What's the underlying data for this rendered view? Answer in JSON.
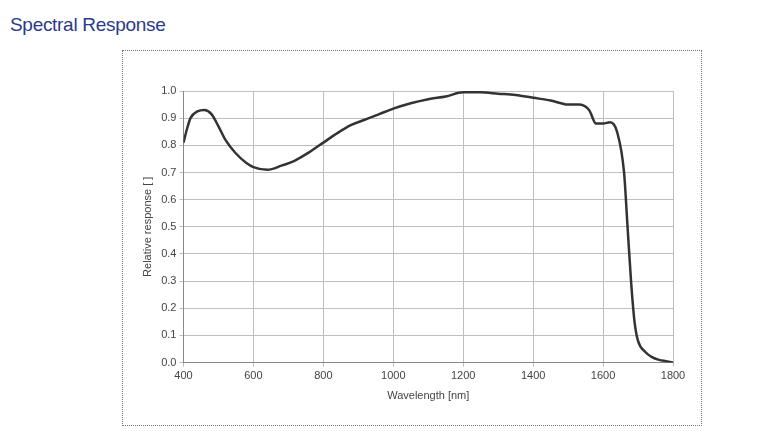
{
  "chart_data": {
    "type": "line",
    "title": "Spectral Response",
    "x_label": "Wavelength [nm]",
    "y_label": "Relative response [ ]",
    "x": [
      400,
      410,
      420,
      440,
      460,
      480,
      500,
      520,
      550,
      580,
      600,
      640,
      680,
      720,
      760,
      800,
      840,
      880,
      920,
      960,
      1000,
      1050,
      1100,
      1150,
      1200,
      1250,
      1300,
      1350,
      1400,
      1450,
      1480,
      1500,
      1530,
      1560,
      1580,
      1600,
      1620,
      1640,
      1660,
      1670,
      1680,
      1690,
      1700,
      1720,
      1740,
      1760,
      1780,
      1800
    ],
    "values": [
      0.81,
      0.86,
      0.9,
      0.925,
      0.93,
      0.915,
      0.87,
      0.82,
      0.77,
      0.735,
      0.72,
      0.71,
      0.725,
      0.745,
      0.775,
      0.81,
      0.845,
      0.875,
      0.895,
      0.915,
      0.935,
      0.955,
      0.97,
      0.98,
      0.995,
      0.995,
      0.99,
      0.985,
      0.975,
      0.965,
      0.955,
      0.95,
      0.95,
      0.93,
      0.88,
      0.88,
      0.885,
      0.85,
      0.7,
      0.5,
      0.3,
      0.15,
      0.08,
      0.04,
      0.02,
      0.01,
      0.005,
      0.0
    ],
    "color": "#333333",
    "xlim": [
      400,
      1800
    ],
    "xticks": [
      400,
      600,
      800,
      1000,
      1200,
      1400,
      1600,
      1800
    ],
    "ylim": [
      0,
      1
    ],
    "yticks": [
      {
        "value": 0,
        "label": "0.0"
      },
      0.1,
      0.2,
      0.3,
      0.4,
      0.5,
      0.6,
      0.7,
      0.8,
      0.9,
      {
        "value": 1,
        "label": "1.0"
      }
    ],
    "grid": true
  }
}
